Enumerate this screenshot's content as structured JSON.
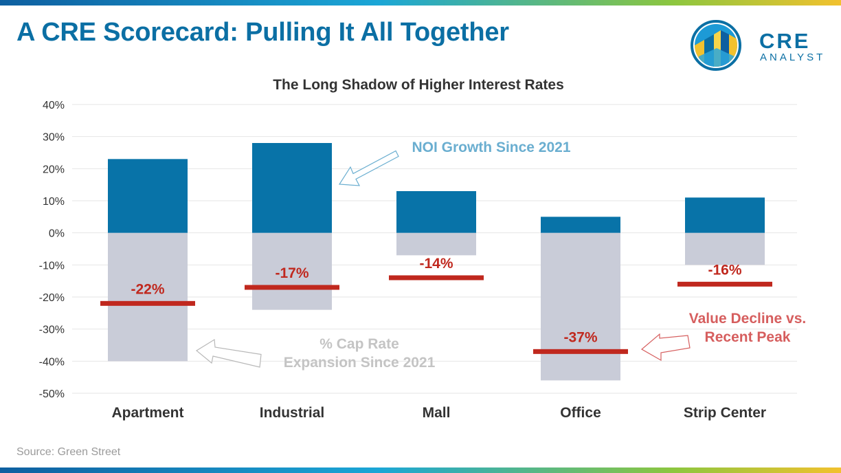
{
  "header": {
    "title": "A CRE Scorecard: Pulling It All Together",
    "logo": {
      "word": "CRE",
      "sub": "ANALYST"
    }
  },
  "source": "Source: Green Street",
  "colors": {
    "title": "#0b6fa4",
    "noi_bar": "#0873a8",
    "cap_bar": "#c9ccd8",
    "value_line": "#c0281e",
    "noi_callout": "#6aaed0",
    "cap_callout": "#c4c4c4",
    "value_callout": "#d65e5e",
    "axis_text": "#333333"
  },
  "chart_data": {
    "type": "bar",
    "title": "The Long Shadow of Higher Interest Rates",
    "categories": [
      "Apartment",
      "Industrial",
      "Mall",
      "Office",
      "Strip Center"
    ],
    "y_ticks": [
      "40%",
      "30%",
      "20%",
      "10%",
      "0%",
      "-10%",
      "-20%",
      "-30%",
      "-40%",
      "-50%"
    ],
    "ylim": [
      -50,
      40
    ],
    "grid": true,
    "series": [
      {
        "name": "NOI Growth Since 2021",
        "kind": "bar",
        "values": [
          23,
          28,
          13,
          5,
          11
        ]
      },
      {
        "name": "% Cap Rate Expansion Since 2021",
        "kind": "bar",
        "values": [
          -40,
          -24,
          -7,
          -46,
          -10
        ]
      },
      {
        "name": "Value Decline vs. Recent Peak",
        "kind": "marker",
        "values": [
          -22,
          -17,
          -14,
          -37,
          -16
        ],
        "labels": [
          "-22%",
          "-17%",
          "-14%",
          "-37%",
          "-16%"
        ]
      }
    ],
    "annotations": {
      "noi": "NOI Growth Since 2021",
      "cap": [
        "% Cap Rate",
        "Expansion Since 2021"
      ],
      "value": [
        "Value Decline vs.",
        "Recent Peak"
      ]
    }
  }
}
